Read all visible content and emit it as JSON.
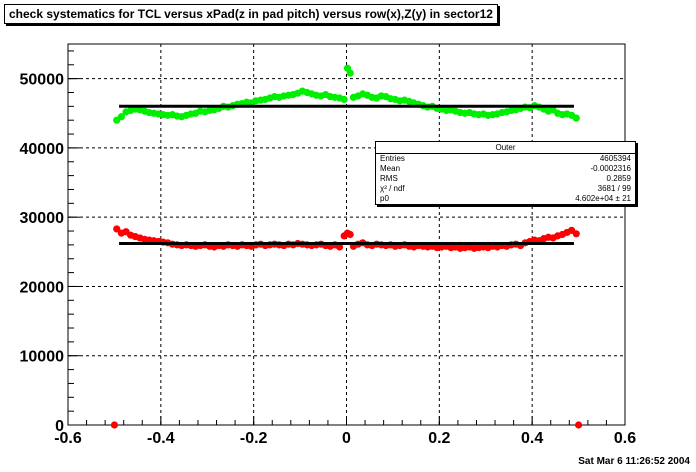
{
  "title": "check systematics for TCL versus xPad(z in pad pitch) versus row(x),Z(y) in sector12",
  "timestamp": "Sat Mar  6 11:26:52 2004",
  "stats": {
    "name": "Outer",
    "rows": [
      {
        "label": "Entries",
        "value": "4605394"
      },
      {
        "label": "Mean",
        "value": "-0.0002316"
      },
      {
        "label": "RMS",
        "value": "0.2859"
      },
      {
        "label": "χ² / ndf",
        "value": "3681 / 99"
      },
      {
        "label": "p0",
        "value": "4.602e+04 ± 21"
      }
    ]
  },
  "chart_data": {
    "type": "scatter",
    "title": "check systematics for TCL versus xPad(z in pad pitch) versus row(x),Z(y) in sector12",
    "xlim": [
      -0.6,
      0.6
    ],
    "ylim": [
      0,
      55000
    ],
    "x_ticks": [
      "-0.6",
      "-0.4",
      "-0.2",
      "0",
      "0.2",
      "0.4",
      "0.6"
    ],
    "y_ticks": [
      "0",
      "10000",
      "20000",
      "30000",
      "40000",
      "50000"
    ],
    "grid": true,
    "series": [
      {
        "color": "#00ee00",
        "points": [
          [
            -0.495,
            44000
          ],
          [
            -0.485,
            44500
          ],
          [
            -0.475,
            45200
          ],
          [
            -0.465,
            45400
          ],
          [
            -0.455,
            45600
          ],
          [
            -0.445,
            45500
          ],
          [
            -0.435,
            45300
          ],
          [
            -0.425,
            45100
          ],
          [
            -0.415,
            45000
          ],
          [
            -0.405,
            44900
          ],
          [
            -0.395,
            44800
          ],
          [
            -0.385,
            44700
          ],
          [
            -0.375,
            44800
          ],
          [
            -0.365,
            44600
          ],
          [
            -0.355,
            44500
          ],
          [
            -0.345,
            44700
          ],
          [
            -0.335,
            44900
          ],
          [
            -0.325,
            45000
          ],
          [
            -0.315,
            45300
          ],
          [
            -0.305,
            45200
          ],
          [
            -0.295,
            45400
          ],
          [
            -0.285,
            45500
          ],
          [
            -0.275,
            45700
          ],
          [
            -0.265,
            46000
          ],
          [
            -0.255,
            45900
          ],
          [
            -0.245,
            46100
          ],
          [
            -0.235,
            46300
          ],
          [
            -0.225,
            46400
          ],
          [
            -0.215,
            46600
          ],
          [
            -0.205,
            46500
          ],
          [
            -0.195,
            46800
          ],
          [
            -0.185,
            46900
          ],
          [
            -0.175,
            47000
          ],
          [
            -0.165,
            47200
          ],
          [
            -0.155,
            47400
          ],
          [
            -0.145,
            47300
          ],
          [
            -0.135,
            47500
          ],
          [
            -0.125,
            47600
          ],
          [
            -0.115,
            47700
          ],
          [
            -0.105,
            47900
          ],
          [
            -0.095,
            48200
          ],
          [
            -0.085,
            48000
          ],
          [
            -0.075,
            47800
          ],
          [
            -0.065,
            47600
          ],
          [
            -0.055,
            47500
          ],
          [
            -0.045,
            47700
          ],
          [
            -0.035,
            47400
          ],
          [
            -0.025,
            47300
          ],
          [
            -0.015,
            47200
          ],
          [
            -0.005,
            47000
          ],
          [
            0.002,
            51500
          ],
          [
            0.008,
            50800
          ],
          [
            0.015,
            47300
          ],
          [
            0.025,
            47500
          ],
          [
            0.035,
            47800
          ],
          [
            0.045,
            47600
          ],
          [
            0.055,
            47300
          ],
          [
            0.065,
            47200
          ],
          [
            0.075,
            47500
          ],
          [
            0.085,
            47400
          ],
          [
            0.095,
            47100
          ],
          [
            0.105,
            47000
          ],
          [
            0.115,
            46800
          ],
          [
            0.125,
            46900
          ],
          [
            0.135,
            46700
          ],
          [
            0.145,
            46500
          ],
          [
            0.155,
            46300
          ],
          [
            0.165,
            46100
          ],
          [
            0.175,
            45900
          ],
          [
            0.185,
            46000
          ],
          [
            0.195,
            45700
          ],
          [
            0.205,
            45600
          ],
          [
            0.215,
            45400
          ],
          [
            0.225,
            45500
          ],
          [
            0.235,
            45300
          ],
          [
            0.245,
            45100
          ],
          [
            0.255,
            45000
          ],
          [
            0.265,
            45100
          ],
          [
            0.275,
            44900
          ],
          [
            0.285,
            44800
          ],
          [
            0.295,
            44900
          ],
          [
            0.305,
            44700
          ],
          [
            0.315,
            44800
          ],
          [
            0.325,
            44900
          ],
          [
            0.335,
            45100
          ],
          [
            0.345,
            45200
          ],
          [
            0.355,
            45400
          ],
          [
            0.365,
            45500
          ],
          [
            0.375,
            45700
          ],
          [
            0.385,
            45900
          ],
          [
            0.395,
            45800
          ],
          [
            0.405,
            46100
          ],
          [
            0.415,
            45900
          ],
          [
            0.425,
            45600
          ],
          [
            0.435,
            45300
          ],
          [
            0.445,
            45500
          ],
          [
            0.455,
            45000
          ],
          [
            0.465,
            44800
          ],
          [
            0.475,
            44900
          ],
          [
            0.485,
            44700
          ],
          [
            0.495,
            44300
          ]
        ]
      },
      {
        "color": "#ff0000",
        "points": [
          [
            -0.5,
            0
          ],
          [
            -0.495,
            28300
          ],
          [
            -0.485,
            27700
          ],
          [
            -0.475,
            27900
          ],
          [
            -0.465,
            27400
          ],
          [
            -0.455,
            27200
          ],
          [
            -0.445,
            27000
          ],
          [
            -0.435,
            26800
          ],
          [
            -0.425,
            26700
          ],
          [
            -0.415,
            26600
          ],
          [
            -0.405,
            26500
          ],
          [
            -0.395,
            26400
          ],
          [
            -0.385,
            26300
          ],
          [
            -0.375,
            26100
          ],
          [
            -0.365,
            26000
          ],
          [
            -0.355,
            25900
          ],
          [
            -0.345,
            26000
          ],
          [
            -0.335,
            25900
          ],
          [
            -0.325,
            25800
          ],
          [
            -0.315,
            25900
          ],
          [
            -0.305,
            26000
          ],
          [
            -0.295,
            25800
          ],
          [
            -0.285,
            25700
          ],
          [
            -0.275,
            25900
          ],
          [
            -0.265,
            25800
          ],
          [
            -0.255,
            26000
          ],
          [
            -0.245,
            25900
          ],
          [
            -0.235,
            25800
          ],
          [
            -0.225,
            26000
          ],
          [
            -0.215,
            25900
          ],
          [
            -0.205,
            25800
          ],
          [
            -0.195,
            26000
          ],
          [
            -0.185,
            26100
          ],
          [
            -0.175,
            25900
          ],
          [
            -0.165,
            26000
          ],
          [
            -0.155,
            26100
          ],
          [
            -0.145,
            26000
          ],
          [
            -0.135,
            25900
          ],
          [
            -0.125,
            26100
          ],
          [
            -0.115,
            26000
          ],
          [
            -0.105,
            26200
          ],
          [
            -0.095,
            26100
          ],
          [
            -0.085,
            26000
          ],
          [
            -0.075,
            25900
          ],
          [
            -0.065,
            26000
          ],
          [
            -0.055,
            26100
          ],
          [
            -0.045,
            25900
          ],
          [
            -0.035,
            25800
          ],
          [
            -0.025,
            26000
          ],
          [
            -0.015,
            25700
          ],
          [
            -0.005,
            27300
          ],
          [
            0.002,
            27700
          ],
          [
            0.008,
            27500
          ],
          [
            0.015,
            25800
          ],
          [
            0.025,
            26100
          ],
          [
            0.035,
            26300
          ],
          [
            0.045,
            26000
          ],
          [
            0.055,
            25900
          ],
          [
            0.065,
            26100
          ],
          [
            0.075,
            26000
          ],
          [
            0.085,
            25900
          ],
          [
            0.095,
            26000
          ],
          [
            0.105,
            25800
          ],
          [
            0.115,
            25900
          ],
          [
            0.125,
            26000
          ],
          [
            0.135,
            25800
          ],
          [
            0.145,
            25700
          ],
          [
            0.155,
            25900
          ],
          [
            0.165,
            25800
          ],
          [
            0.175,
            25700
          ],
          [
            0.185,
            25800
          ],
          [
            0.195,
            25600
          ],
          [
            0.205,
            25700
          ],
          [
            0.215,
            25800
          ],
          [
            0.225,
            25600
          ],
          [
            0.235,
            25700
          ],
          [
            0.245,
            25500
          ],
          [
            0.255,
            25600
          ],
          [
            0.265,
            25700
          ],
          [
            0.275,
            25500
          ],
          [
            0.285,
            25600
          ],
          [
            0.295,
            25700
          ],
          [
            0.305,
            25600
          ],
          [
            0.315,
            25800
          ],
          [
            0.325,
            25700
          ],
          [
            0.335,
            25900
          ],
          [
            0.345,
            25800
          ],
          [
            0.355,
            26000
          ],
          [
            0.365,
            26100
          ],
          [
            0.375,
            25900
          ],
          [
            0.385,
            26300
          ],
          [
            0.395,
            26500
          ],
          [
            0.405,
            26700
          ],
          [
            0.415,
            26600
          ],
          [
            0.425,
            26900
          ],
          [
            0.435,
            27100
          ],
          [
            0.445,
            27000
          ],
          [
            0.455,
            27300
          ],
          [
            0.465,
            27500
          ],
          [
            0.475,
            27800
          ],
          [
            0.485,
            28100
          ],
          [
            0.495,
            27600
          ],
          [
            0.5,
            0
          ]
        ]
      }
    ],
    "fits": [
      {
        "color": "#000000",
        "x0": -0.49,
        "x1": 0.49,
        "y": 46020
      },
      {
        "color": "#000000",
        "x0": -0.49,
        "x1": 0.49,
        "y": 26200
      }
    ]
  }
}
